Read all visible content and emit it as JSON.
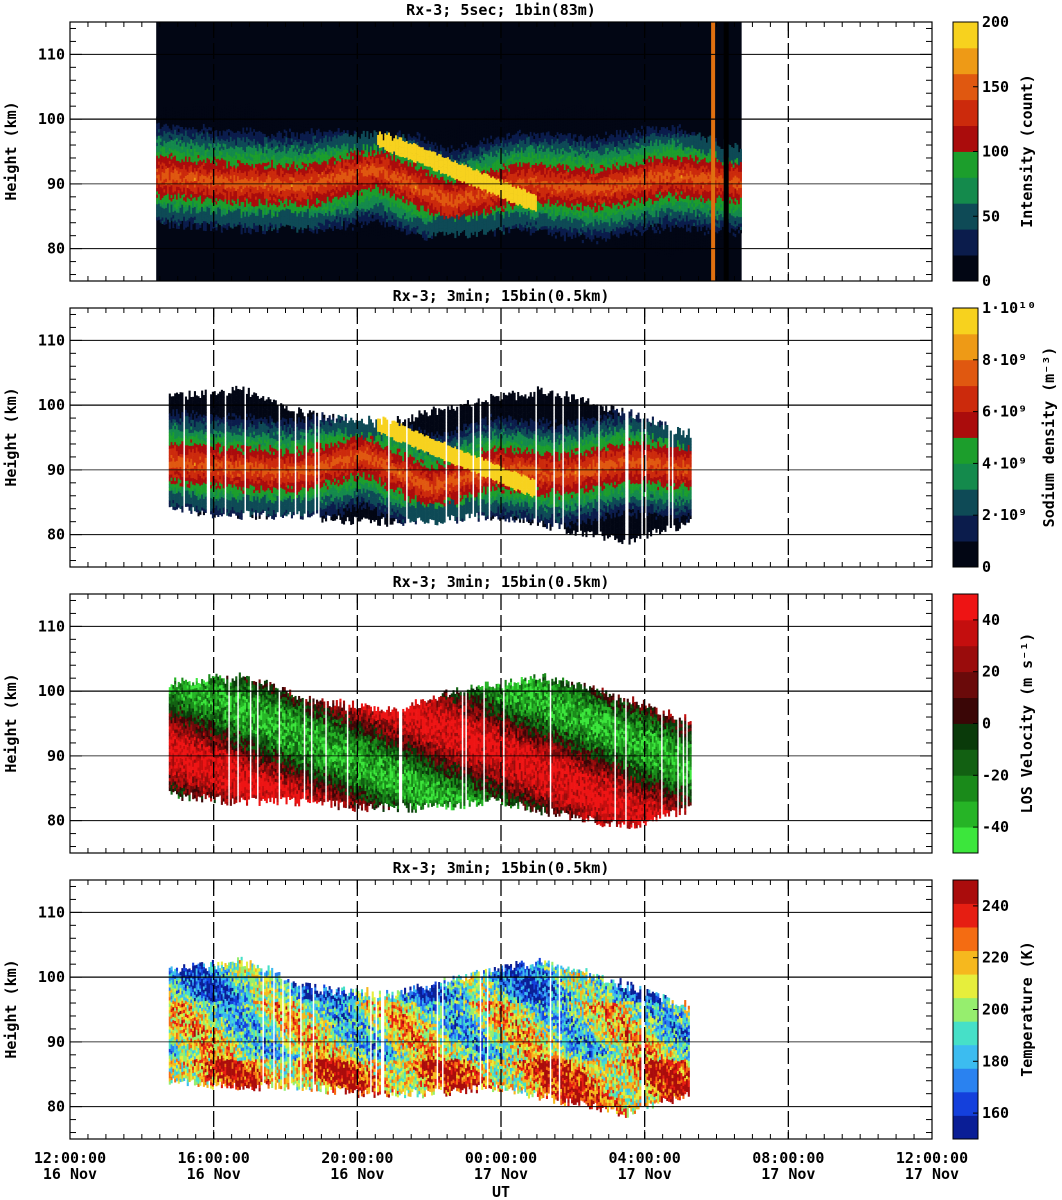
{
  "figure": {
    "x_axis_label": "UT",
    "x_ticks": [
      {
        "time": "12:00:00",
        "date": "16 Nov",
        "hours": 0
      },
      {
        "time": "16:00:00",
        "date": "16 Nov",
        "hours": 4
      },
      {
        "time": "20:00:00",
        "date": "16 Nov",
        "hours": 8
      },
      {
        "time": "00:00:00",
        "date": "17 Nov",
        "hours": 12
      },
      {
        "time": "04:00:00",
        "date": "17 Nov",
        "hours": 16
      },
      {
        "time": "08:00:00",
        "date": "17 Nov",
        "hours": 20
      },
      {
        "time": "12:00:00",
        "date": "17 Nov",
        "hours": 24
      }
    ]
  },
  "chart_data": [
    {
      "type": "heatmap",
      "title": "Rx-3;  5sec; 1bin(83m)",
      "ylabel": "Height (km)",
      "xlim_hours": [
        0,
        24
      ],
      "ylim": [
        75,
        115
      ],
      "y_ticks": [
        80,
        90,
        100,
        110
      ],
      "colorbar": {
        "label": "Intensity (count)",
        "ticks": [
          "0",
          "50",
          "100",
          "150",
          "200"
        ],
        "range": [
          0,
          200
        ],
        "colors": [
          "#020614",
          "#0b1c4c",
          "#0e4a56",
          "#148a4c",
          "#1c9e2c",
          "#aa0c0c",
          "#cc2a0c",
          "#e05810",
          "#ee9a16",
          "#f7d21e"
        ]
      },
      "data_extent_hours": [
        2.4,
        18.7
      ],
      "layer": {
        "top_km": [
          101,
          103,
          98,
          94
        ],
        "bottom_km": [
          88,
          85,
          82,
          82
        ],
        "peak_km": [
          92,
          90,
          88,
          90
        ]
      }
    },
    {
      "type": "heatmap",
      "title": "Rx-3; 3min; 15bin(0.5km)",
      "ylabel": "Height (km)",
      "xlim_hours": [
        0,
        24
      ],
      "ylim": [
        75,
        115
      ],
      "y_ticks": [
        80,
        90,
        100,
        110
      ],
      "colorbar": {
        "label": "Sodium density (m⁻³)",
        "ticks": [
          "0",
          "2·10⁹",
          "4·10⁹",
          "6·10⁹",
          "8·10⁹",
          "1·10¹⁰"
        ],
        "range": [
          0,
          10000000000
        ],
        "colors": [
          "#020614",
          "#0b1c4c",
          "#0e4a56",
          "#148a4c",
          "#1c9e2c",
          "#aa0c0c",
          "#cc2a0c",
          "#e05810",
          "#ee9a16",
          "#f7d21e"
        ]
      },
      "data_extent_hours": [
        2.7,
        17.3
      ]
    },
    {
      "type": "heatmap",
      "title": "Rx-3; 3min; 15bin(0.5km)",
      "ylabel": "Height (km)",
      "xlim_hours": [
        0,
        24
      ],
      "ylim": [
        75,
        115
      ],
      "y_ticks": [
        80,
        90,
        100,
        110
      ],
      "colorbar": {
        "label": "LOS Velocity (m s⁻¹)",
        "ticks": [
          "-40",
          "-20",
          "0",
          "20",
          "40"
        ],
        "range": [
          -50,
          50
        ],
        "colors": [
          "#3ce63c",
          "#26b426",
          "#1a8a1a",
          "#126012",
          "#0a3a0a",
          "#3a0606",
          "#6a0a0a",
          "#9a0c0c",
          "#c40e0e",
          "#ee1414"
        ]
      },
      "data_extent_hours": [
        2.7,
        17.3
      ]
    },
    {
      "type": "heatmap",
      "title": "Rx-3; 3min; 15bin(0.5km)",
      "ylabel": "Height (km)",
      "xlim_hours": [
        0,
        24
      ],
      "ylim": [
        75,
        115
      ],
      "y_ticks": [
        80,
        90,
        100,
        110
      ],
      "colorbar": {
        "label": "Temperature (K)",
        "ticks": [
          "160",
          "180",
          "200",
          "220",
          "240"
        ],
        "range": [
          150,
          250
        ],
        "colors": [
          "#0a1e96",
          "#1440dc",
          "#2a82f0",
          "#3cbcf0",
          "#46e0c8",
          "#96ee6e",
          "#e6ee3c",
          "#f6b81e",
          "#f46c12",
          "#e61e12",
          "#aa0c0c"
        ]
      },
      "data_extent_hours": [
        2.7,
        17.3
      ]
    }
  ]
}
